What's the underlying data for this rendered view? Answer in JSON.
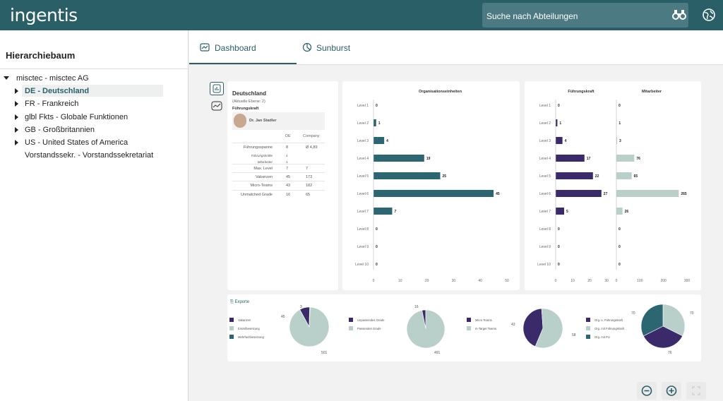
{
  "header": {
    "logo": "ingentis",
    "search_placeholder": "Suche nach Abteilungen"
  },
  "sidebar": {
    "title": "Hierarchiebaum",
    "items": [
      {
        "label": "misctec - misctec AG"
      },
      {
        "label": "DE - Deutschland"
      },
      {
        "label": "FR - Frankreich"
      },
      {
        "label": "glbl Fkts - Globale Funktionen"
      },
      {
        "label": "GB - Großbritannien"
      },
      {
        "label": "US - United States of America"
      },
      {
        "label": "Vorstandssekr. - Vorstandssekretariat"
      }
    ]
  },
  "tabs": [
    {
      "label": "Dashboard"
    },
    {
      "label": "Sunburst"
    }
  ],
  "info": {
    "title": "Deutschland",
    "subtitle": "(Aktuelle Ebene: 2)",
    "section": "Führungskraft",
    "person": "Dr. Jan Stadler",
    "col_de": "DE",
    "col_company": "Company",
    "rows": [
      {
        "label": "Führungsspanne",
        "de": "8",
        "co": "Ø 4,89"
      },
      {
        "label": "Führungskräfte",
        "de": "4",
        "co": ""
      },
      {
        "label": "Mitarbeiter",
        "de": "1",
        "co": ""
      },
      {
        "label": "Max. Level",
        "de": "7",
        "co": "7"
      },
      {
        "label": "Vakanzen",
        "de": "45",
        "co": "173"
      },
      {
        "label": "Micro-Teams",
        "de": "43",
        "co": "182"
      },
      {
        "label": "Unmatched Grade",
        "de": "16",
        "co": "65"
      }
    ]
  },
  "colors": {
    "teal": "#2c6670",
    "purple": "#3a2a6a",
    "light": "#b9cfca",
    "header": "#2a5f68"
  },
  "chart_data": [
    {
      "type": "bar",
      "title": "Organisationseinheiten",
      "categories": [
        "Level 1",
        "Level 2",
        "Level 3",
        "Level 4",
        "Level 5",
        "Level 6",
        "Level 7",
        "Level 8",
        "Level 9",
        "Level 10"
      ],
      "values": [
        0,
        1,
        4,
        19,
        25,
        45,
        7,
        0,
        0,
        0
      ],
      "xticks": [
        "0",
        "10",
        "20",
        "30",
        "40",
        "50"
      ],
      "xlim": [
        0,
        50
      ]
    },
    {
      "type": "bar",
      "title": "Führungskraft",
      "categories": [
        "Level 1",
        "Level 2",
        "Level 3",
        "Level 4",
        "Level 5",
        "Level 6",
        "Level 7",
        "Level 8",
        "Level 9",
        "Level 10"
      ],
      "values": [
        0,
        1,
        4,
        17,
        22,
        27,
        5,
        0,
        0,
        0
      ],
      "xticks": [
        "0",
        "10",
        "20",
        "30"
      ],
      "xlim": [
        0,
        30
      ]
    },
    {
      "type": "bar",
      "title": "Mitarbeiter",
      "categories": [
        "Level 1",
        "Level 2",
        "Level 3",
        "Level 4",
        "Level 5",
        "Level 6",
        "Level 7",
        "Level 8",
        "Level 9",
        "Level 10"
      ],
      "values": [
        0,
        1,
        3,
        76,
        65,
        265,
        26,
        0,
        0,
        0
      ],
      "xticks": [
        "0",
        "100",
        "200",
        "300"
      ],
      "xlim": [
        0,
        300
      ]
    },
    {
      "type": "pie",
      "legend": [
        "Vakanzen",
        "Einzelbesetzung",
        "Mehrfachbesetzung"
      ],
      "values": [
        45,
        3,
        501
      ]
    },
    {
      "type": "pie",
      "legend": [
        "Unpassendes Grade",
        "Passendes Grade"
      ],
      "values": [
        16,
        491
      ]
    },
    {
      "type": "pie",
      "legend": [
        "Micro Teams",
        "In-Target Teams"
      ],
      "values": [
        43,
        58
      ]
    },
    {
      "type": "pie",
      "legend": [
        "Org. o. Führungskraft",
        "Org. mit Führungskraft",
        "Org. mit PU"
      ],
      "values": [
        76,
        70,
        70
      ]
    }
  ],
  "exports": "Exporte"
}
